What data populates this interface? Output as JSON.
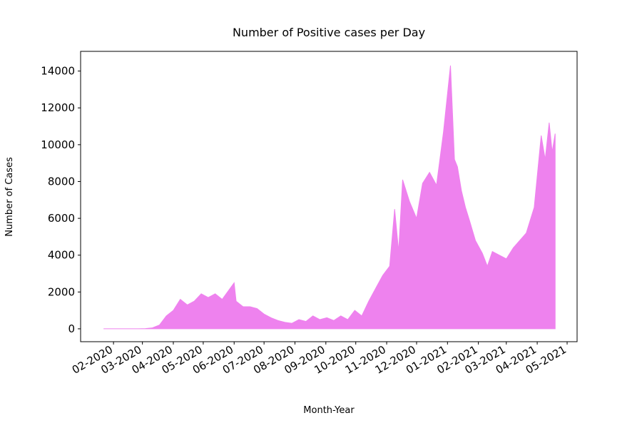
{
  "chart_data": {
    "type": "area",
    "title": "Number of Positive cases per Day",
    "xlabel": "Month-Year",
    "ylabel": "Number of Cases",
    "x": [
      "2020-01-22",
      "2020-01-29",
      "2020-02-05",
      "2020-02-12",
      "2020-02-19",
      "2020-02-26",
      "2020-03-04",
      "2020-03-11",
      "2020-03-18",
      "2020-03-25",
      "2020-04-01",
      "2020-04-08",
      "2020-04-15",
      "2020-04-22",
      "2020-04-29",
      "2020-05-06",
      "2020-05-13",
      "2020-05-20",
      "2020-06-01",
      "2020-06-03",
      "2020-06-10",
      "2020-06-17",
      "2020-06-24",
      "2020-07-01",
      "2020-07-08",
      "2020-07-15",
      "2020-07-22",
      "2020-07-29",
      "2020-08-05",
      "2020-08-12",
      "2020-08-19",
      "2020-08-26",
      "2020-09-02",
      "2020-09-09",
      "2020-09-16",
      "2020-09-23",
      "2020-09-30",
      "2020-10-07",
      "2020-10-14",
      "2020-10-21",
      "2020-10-28",
      "2020-11-04",
      "2020-11-09",
      "2020-11-13",
      "2020-11-17",
      "2020-11-24",
      "2020-12-01",
      "2020-12-07",
      "2020-12-14",
      "2020-12-21",
      "2020-12-28",
      "2021-01-04",
      "2021-01-08",
      "2021-01-11",
      "2021-01-15",
      "2021-01-19",
      "2021-01-23",
      "2021-01-29",
      "2021-02-05",
      "2021-02-10",
      "2021-02-15",
      "2021-02-22",
      "2021-03-01",
      "2021-03-08",
      "2021-03-21",
      "2021-03-29",
      "2021-04-05",
      "2021-04-09",
      "2021-04-13",
      "2021-04-16",
      "2021-04-19"
    ],
    "series": [
      {
        "name": "Positive cases",
        "color": "#ee82ee",
        "values": [
          0,
          0,
          0,
          0,
          0,
          0,
          10,
          50,
          200,
          700,
          1000,
          1600,
          1300,
          1500,
          1900,
          1700,
          1900,
          1600,
          2500,
          1500,
          1200,
          1200,
          1100,
          800,
          600,
          450,
          350,
          300,
          500,
          400,
          700,
          500,
          600,
          450,
          700,
          500,
          1000,
          700,
          1500,
          2200,
          2900,
          3400,
          6500,
          4200,
          8100,
          6900,
          6000,
          7900,
          8500,
          7800,
          10700,
          14300,
          9200,
          8800,
          7500,
          6600,
          5900,
          4800,
          4100,
          3400,
          4200,
          4000,
          3800,
          4400,
          5200,
          6600,
          10500,
          9200,
          11200,
          9600,
          10600
        ]
      }
    ],
    "xlim": [
      "2019-12-30",
      "2021-05-11"
    ],
    "xticks": [
      {
        "value": "2020-02-01",
        "label": "02-2020"
      },
      {
        "value": "2020-03-01",
        "label": "03-2020"
      },
      {
        "value": "2020-04-01",
        "label": "04-2020"
      },
      {
        "value": "2020-05-01",
        "label": "05-2020"
      },
      {
        "value": "2020-06-01",
        "label": "06-2020"
      },
      {
        "value": "2020-07-01",
        "label": "07-2020"
      },
      {
        "value": "2020-08-01",
        "label": "08-2020"
      },
      {
        "value": "2020-09-01",
        "label": "09-2020"
      },
      {
        "value": "2020-10-01",
        "label": "10-2020"
      },
      {
        "value": "2020-11-01",
        "label": "11-2020"
      },
      {
        "value": "2020-12-01",
        "label": "12-2020"
      },
      {
        "value": "2021-01-01",
        "label": "01-2021"
      },
      {
        "value": "2021-02-01",
        "label": "02-2021"
      },
      {
        "value": "2021-03-01",
        "label": "03-2021"
      },
      {
        "value": "2021-04-01",
        "label": "04-2021"
      },
      {
        "value": "2021-05-01",
        "label": "05-2021"
      }
    ],
    "ylim": [
      -700,
      15070
    ],
    "yticks": [
      0,
      2000,
      4000,
      6000,
      8000,
      10000,
      12000,
      14000
    ],
    "grid": false
  }
}
